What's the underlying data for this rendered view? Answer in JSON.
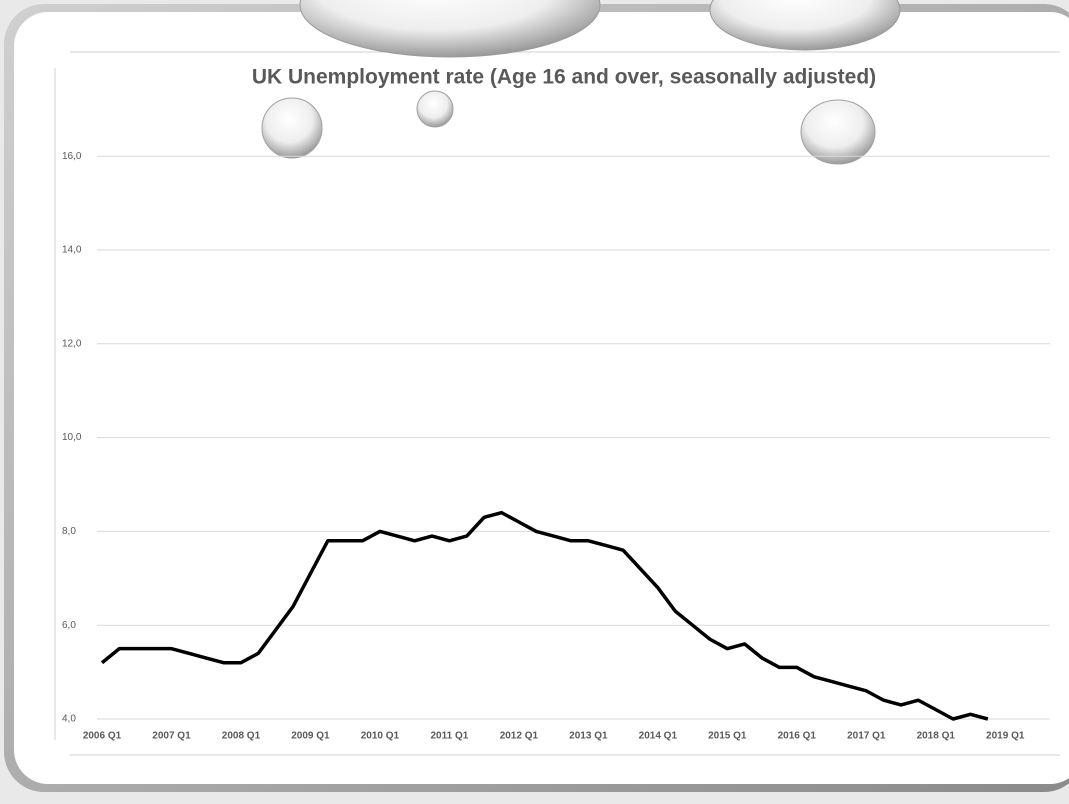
{
  "chart_data": {
    "type": "line",
    "title": "UK Unemployment rate (Age 16 and over, seasonally adjusted)",
    "categories": [
      "2006 Q1",
      null,
      null,
      null,
      "2007 Q1",
      null,
      null,
      null,
      "2008 Q1",
      null,
      null,
      null,
      "2009 Q1",
      null,
      null,
      null,
      "2010 Q1",
      null,
      null,
      null,
      "2011 Q1",
      null,
      null,
      null,
      "2012 Q1",
      null,
      null,
      null,
      "2013 Q1",
      null,
      null,
      null,
      "2014 Q1",
      null,
      null,
      null,
      "2015 Q1",
      null,
      null,
      null,
      "2016 Q1",
      null,
      null,
      null,
      "2017 Q1",
      null,
      null,
      null,
      "2018 Q1",
      null,
      null,
      null,
      "2019 Q1"
    ],
    "values": [
      5.2,
      5.5,
      5.5,
      5.5,
      5.5,
      5.4,
      5.3,
      5.2,
      5.2,
      5.4,
      5.9,
      6.4,
      7.1,
      7.8,
      7.8,
      7.8,
      8.0,
      7.9,
      7.8,
      7.9,
      7.8,
      7.9,
      8.3,
      8.4,
      8.2,
      8.0,
      7.9,
      7.8,
      7.8,
      7.7,
      7.6,
      7.2,
      6.8,
      6.3,
      6.0,
      5.7,
      5.5,
      5.6,
      5.3,
      5.1,
      5.1,
      4.9,
      4.8,
      4.7,
      4.6,
      4.4,
      4.3,
      4.4,
      4.2,
      4.0,
      4.1,
      4.0,
      null
    ],
    "color": "#000000",
    "ylim": [
      4,
      17.4
    ],
    "yticks": [
      {
        "value": 4,
        "label": "4,0"
      },
      {
        "value": 6,
        "label": "6,0"
      },
      {
        "value": 8,
        "label": "8,0"
      },
      {
        "value": 10,
        "label": "10,0"
      },
      {
        "value": 12,
        "label": "12,0"
      },
      {
        "value": 14,
        "label": "14,0"
      },
      {
        "value": 16,
        "label": "16,0"
      }
    ],
    "grid": true
  }
}
